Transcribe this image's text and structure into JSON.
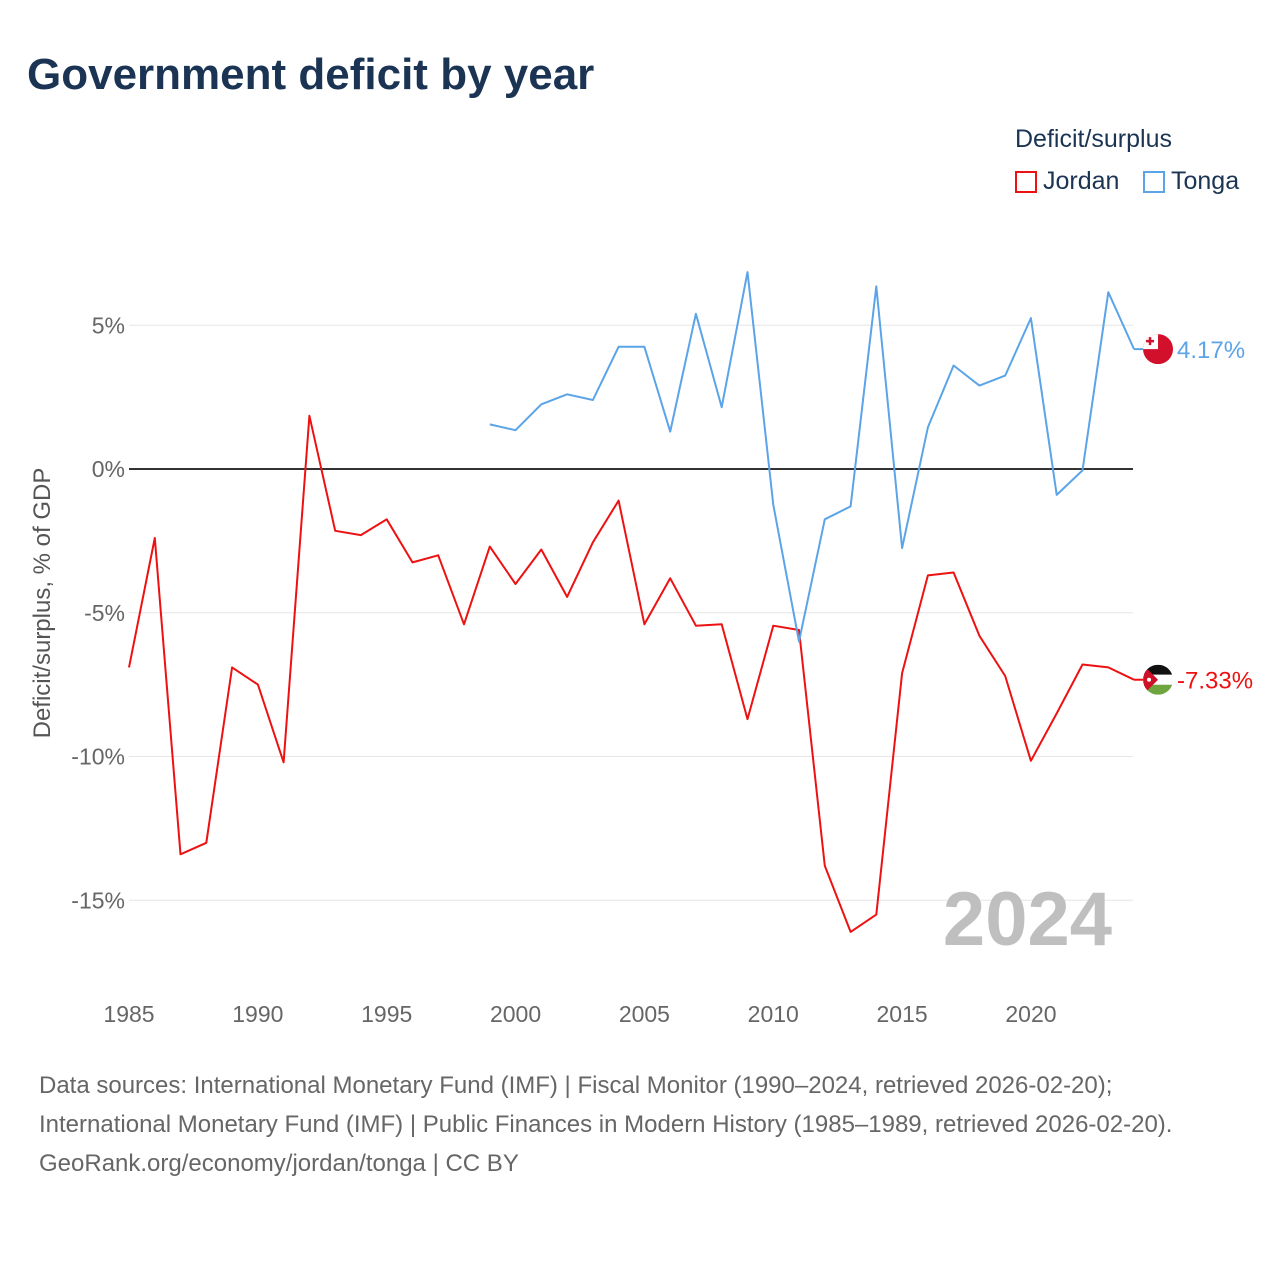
{
  "chart_data": {
    "type": "line",
    "title": "Government deficit by year",
    "ylabel": "Deficit/surplus, % of GDP",
    "xlabel": "",
    "ylim": [
      -17.5,
      7.5
    ],
    "xlim": [
      1985,
      2024
    ],
    "yticks": [
      5,
      0,
      -5,
      -10,
      -15
    ],
    "ytick_labels": [
      "5%",
      "0%",
      "-5%",
      "-10%",
      "-15%"
    ],
    "xticks": [
      1985,
      1990,
      1995,
      2000,
      2005,
      2010,
      2015,
      2020
    ],
    "xtick_labels": [
      "1985",
      "1990",
      "1995",
      "2000",
      "2005",
      "2010",
      "2015",
      "2020"
    ],
    "grid": true,
    "legend_title": "Deficit/surplus",
    "legend_placement": "top-right",
    "year_watermark": "2024",
    "series": [
      {
        "name": "Jordan",
        "color": "#ee1111",
        "end_label": "-7.33%",
        "x": [
          1985,
          1986,
          1987,
          1988,
          1989,
          1990,
          1991,
          1992,
          1993,
          1994,
          1995,
          1996,
          1997,
          1998,
          1999,
          2000,
          2001,
          2002,
          2003,
          2004,
          2005,
          2006,
          2007,
          2008,
          2009,
          2010,
          2011,
          2012,
          2013,
          2014,
          2015,
          2016,
          2017,
          2018,
          2019,
          2020,
          2021,
          2022,
          2023,
          2024
        ],
        "values": [
          -6.9,
          -2.4,
          -13.4,
          -13.0,
          -6.9,
          -7.5,
          -10.2,
          1.85,
          -2.15,
          -2.3,
          -1.75,
          -3.25,
          -3.0,
          -5.4,
          -2.7,
          -4.0,
          -2.8,
          -4.45,
          -2.55,
          -1.1,
          -5.4,
          -3.8,
          -5.45,
          -5.4,
          -8.7,
          -5.45,
          -5.6,
          -13.8,
          -16.1,
          -15.5,
          -7.1,
          -3.7,
          -3.6,
          -5.8,
          -7.2,
          -10.15,
          -8.5,
          -6.8,
          -6.9,
          -7.33
        ]
      },
      {
        "name": "Tonga",
        "color": "#5ba4e8",
        "end_label": "4.17%",
        "x": [
          1999,
          2000,
          2001,
          2002,
          2003,
          2004,
          2005,
          2006,
          2007,
          2008,
          2009,
          2010,
          2011,
          2012,
          2013,
          2014,
          2015,
          2016,
          2017,
          2018,
          2019,
          2020,
          2021,
          2022,
          2023,
          2024
        ],
        "values": [
          1.55,
          1.35,
          2.25,
          2.6,
          2.4,
          4.25,
          4.25,
          1.3,
          5.4,
          2.15,
          6.85,
          -1.25,
          -6.0,
          -1.75,
          -1.3,
          6.35,
          -2.75,
          1.45,
          3.6,
          2.9,
          3.25,
          5.25,
          -0.9,
          -0.05,
          6.15,
          4.17
        ]
      }
    ]
  },
  "footer": {
    "sources": "Data sources: International Monetary Fund (IMF) | Fiscal Monitor (1990–2024, retrieved 2026-02-20); International Monetary Fund (IMF) | Public Finances in Modern History (1985–1989, retrieved 2026-02-20).",
    "credit": "GeoRank.org/economy/jordan/tonga | CC BY"
  }
}
